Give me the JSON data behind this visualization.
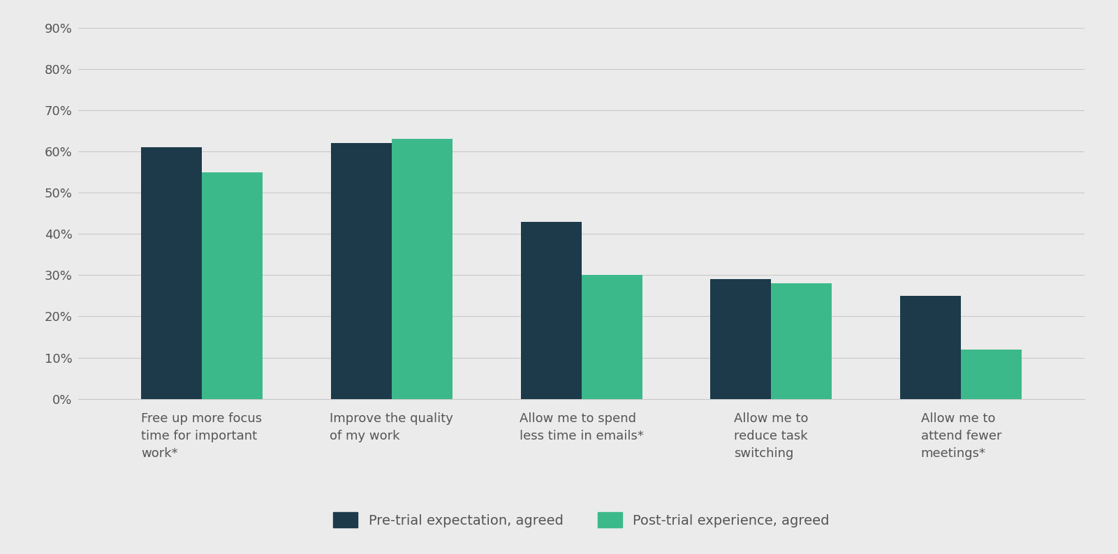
{
  "categories": [
    "Free up more focus\ntime for important\nwork*",
    "Improve the quality\nof my work",
    "Allow me to spend\nless time in emails*",
    "Allow me to\nreduce task\nswitching",
    "Allow me to\nattend fewer\nmeetings*"
  ],
  "pre_trial": [
    61,
    62,
    43,
    29,
    25
  ],
  "post_trial": [
    55,
    63,
    30,
    28,
    12
  ],
  "pre_color": "#1c3a4a",
  "post_color": "#3cb98a",
  "background_color": "#ebebeb",
  "ylim": [
    0,
    90
  ],
  "yticks": [
    0,
    10,
    20,
    30,
    40,
    50,
    60,
    70,
    80,
    90
  ],
  "ytick_labels": [
    "0%",
    "10%",
    "20%",
    "30%",
    "40%",
    "50%",
    "60%",
    "70%",
    "80%",
    "90%"
  ],
  "legend_pre": "Pre-trial expectation, agreed",
  "legend_post": "Post-trial experience, agreed",
  "bar_width": 0.32,
  "grid_color": "#c8c8c8",
  "tick_color": "#555555",
  "label_color": "#555555"
}
